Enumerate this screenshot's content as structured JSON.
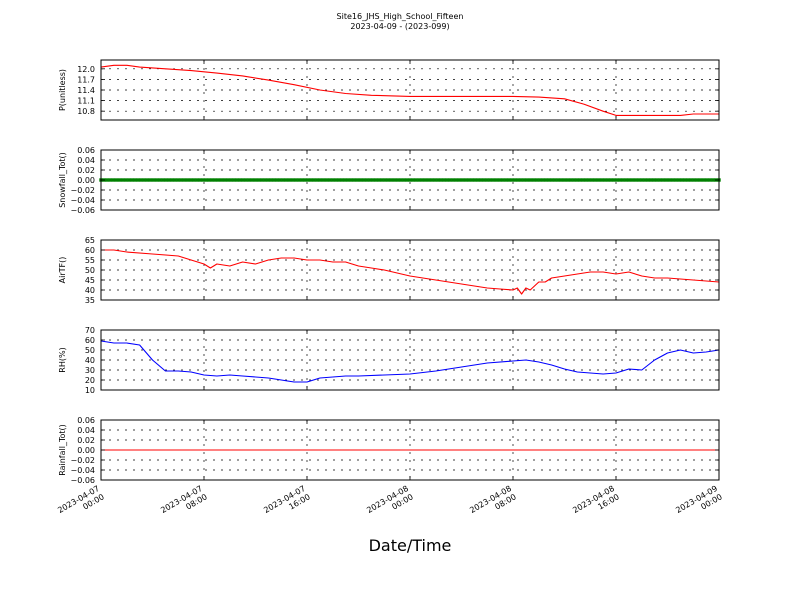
{
  "figure": {
    "title": "Site16_JHS_High_School_Fifteen",
    "subtitle": "2023-04-09 - (2023-099)",
    "xlabel": "Date/Time"
  },
  "chart_data": {
    "type": "line",
    "x_ticks": [
      "2023-04-07 00:00",
      "2023-04-07 08:00",
      "2023-04-07 16:00",
      "2023-04-08 00:00",
      "2023-04-08 08:00",
      "2023-04-08 16:00",
      "2023-04-09 00:00"
    ],
    "x_tick_labels": [
      [
        "2023-04-07",
        "00:00"
      ],
      [
        "2023-04-07",
        "08:00"
      ],
      [
        "2023-04-07",
        "16:00"
      ],
      [
        "2023-04-08",
        "00:00"
      ],
      [
        "2023-04-08",
        "08:00"
      ],
      [
        "2023-04-08",
        "16:00"
      ],
      [
        "2023-04-09",
        "00:00"
      ]
    ],
    "xlim": [
      "2023-04-07 00:00",
      "2023-04-09 00:00"
    ],
    "grid": true,
    "panels": [
      {
        "ylabel": "P(unitless)",
        "ylim": [
          10.55,
          12.25
        ],
        "yticks": [
          10.8,
          11.1,
          11.4,
          11.7,
          12.0
        ],
        "ytick_labels": [
          "10.8",
          "11.1",
          "11.4",
          "11.7",
          "12.0"
        ],
        "series": [
          {
            "color": "#ff0000",
            "style": "line",
            "x": [
              "2023-04-07 00:00",
              "2023-04-07 01:00",
              "2023-04-07 02:00",
              "2023-04-07 03:00",
              "2023-04-07 05:00",
              "2023-04-07 07:00",
              "2023-04-07 09:00",
              "2023-04-07 11:00",
              "2023-04-07 13:00",
              "2023-04-07 15:00",
              "2023-04-07 17:00",
              "2023-04-07 19:00",
              "2023-04-07 21:00",
              "2023-04-08 00:00",
              "2023-04-08 04:00",
              "2023-04-08 08:00",
              "2023-04-08 10:00",
              "2023-04-08 12:00",
              "2023-04-08 13:30",
              "2023-04-08 15:00",
              "2023-04-08 16:00",
              "2023-04-08 19:00",
              "2023-04-08 21:00",
              "2023-04-08 22:00",
              "2023-04-09 00:00"
            ],
            "values": [
              12.05,
              12.1,
              12.1,
              12.05,
              12.0,
              11.95,
              11.88,
              11.8,
              11.68,
              11.55,
              11.4,
              11.3,
              11.25,
              11.22,
              11.22,
              11.22,
              11.2,
              11.15,
              11.0,
              10.8,
              10.68,
              10.68,
              10.68,
              10.72,
              10.72
            ]
          }
        ]
      },
      {
        "ylabel": "Snowfall_Tot()",
        "ylim": [
          -0.06,
          0.06
        ],
        "yticks": [
          -0.06,
          -0.04,
          -0.02,
          0.0,
          0.02,
          0.04,
          0.06
        ],
        "ytick_labels": [
          "−0.06",
          "−0.04",
          "−0.02",
          "0.00",
          "0.02",
          "0.04",
          "0.06"
        ],
        "series": [
          {
            "color": "#008000",
            "style": "markers",
            "x_range": [
              "2023-04-07 00:00",
              "2023-04-09 00:00"
            ],
            "constant_value": 0.0
          }
        ]
      },
      {
        "ylabel": "AirTF()",
        "ylim": [
          35,
          65
        ],
        "yticks": [
          35,
          40,
          45,
          50,
          55,
          60,
          65
        ],
        "ytick_labels": [
          "35",
          "40",
          "45",
          "50",
          "55",
          "60",
          "65"
        ],
        "series": [
          {
            "color": "#ff0000",
            "style": "line",
            "x": [
              "2023-04-07 00:00",
              "2023-04-07 01:00",
              "2023-04-07 02:00",
              "2023-04-07 04:00",
              "2023-04-07 06:00",
              "2023-04-07 07:00",
              "2023-04-07 07:30",
              "2023-04-07 08:00",
              "2023-04-07 08:30",
              "2023-04-07 09:00",
              "2023-04-07 10:00",
              "2023-04-07 11:00",
              "2023-04-07 12:00",
              "2023-04-07 13:00",
              "2023-04-07 14:00",
              "2023-04-07 15:00",
              "2023-04-07 16:00",
              "2023-04-07 17:00",
              "2023-04-07 18:00",
              "2023-04-07 19:00",
              "2023-04-07 20:00",
              "2023-04-07 21:00",
              "2023-04-07 22:00",
              "2023-04-08 00:00",
              "2023-04-08 02:00",
              "2023-04-08 04:00",
              "2023-04-08 06:00",
              "2023-04-08 07:00",
              "2023-04-08 08:00",
              "2023-04-08 08:20",
              "2023-04-08 08:40",
              "2023-04-08 09:00",
              "2023-04-08 09:20",
              "2023-04-08 10:00",
              "2023-04-08 10:30",
              "2023-04-08 11:00",
              "2023-04-08 12:00",
              "2023-04-08 13:00",
              "2023-04-08 14:00",
              "2023-04-08 15:00",
              "2023-04-08 16:00",
              "2023-04-08 17:00",
              "2023-04-08 18:00",
              "2023-04-08 19:00",
              "2023-04-08 20:00",
              "2023-04-08 22:00",
              "2023-04-09 00:00"
            ],
            "values": [
              60,
              60,
              59,
              58,
              57,
              55,
              54,
              53,
              51,
              53,
              52,
              54,
              53,
              55,
              56,
              56,
              55,
              55,
              54,
              54,
              52,
              51,
              50,
              47,
              45,
              43,
              41,
              40.5,
              40,
              41,
              38,
              41,
              40,
              44,
              44,
              46,
              47,
              48,
              49,
              49,
              48,
              49,
              47,
              46,
              46,
              45,
              44
            ]
          }
        ]
      },
      {
        "ylabel": "RH(%)",
        "ylim": [
          10,
          70
        ],
        "yticks": [
          10,
          20,
          30,
          40,
          50,
          60,
          70
        ],
        "ytick_labels": [
          "10",
          "20",
          "30",
          "40",
          "50",
          "60",
          "70"
        ],
        "series": [
          {
            "color": "#0000ff",
            "style": "line",
            "x": [
              "2023-04-07 00:00",
              "2023-04-07 01:00",
              "2023-04-07 02:00",
              "2023-04-07 03:00",
              "2023-04-07 04:00",
              "2023-04-07 05:00",
              "2023-04-07 06:00",
              "2023-04-07 07:00",
              "2023-04-07 08:00",
              "2023-04-07 09:00",
              "2023-04-07 10:00",
              "2023-04-07 11:00",
              "2023-04-07 12:00",
              "2023-04-07 13:00",
              "2023-04-07 14:00",
              "2023-04-07 15:00",
              "2023-04-07 16:00",
              "2023-04-07 17:00",
              "2023-04-07 18:00",
              "2023-04-07 19:00",
              "2023-04-07 20:00",
              "2023-04-07 22:00",
              "2023-04-08 00:00",
              "2023-04-08 02:00",
              "2023-04-08 04:00",
              "2023-04-08 06:00",
              "2023-04-08 08:00",
              "2023-04-08 09:00",
              "2023-04-08 10:00",
              "2023-04-08 11:00",
              "2023-04-08 12:00",
              "2023-04-08 13:00",
              "2023-04-08 14:00",
              "2023-04-08 15:00",
              "2023-04-08 16:00",
              "2023-04-08 17:00",
              "2023-04-08 18:00",
              "2023-04-08 19:00",
              "2023-04-08 20:00",
              "2023-04-08 21:00",
              "2023-04-08 22:00",
              "2023-04-08 23:00",
              "2023-04-09 00:00"
            ],
            "values": [
              59,
              57,
              57,
              55,
              40,
              29,
              29,
              28,
              25,
              24,
              25,
              24,
              23,
              22,
              20,
              18,
              18,
              22,
              23,
              24,
              24,
              25,
              26,
              29,
              33,
              37,
              39,
              40,
              38,
              35,
              31,
              28,
              27,
              26,
              27,
              31,
              30,
              40,
              47,
              50,
              47,
              48,
              50
            ]
          }
        ]
      },
      {
        "ylabel": "Rainfall_Tot()",
        "ylim": [
          -0.06,
          0.06
        ],
        "yticks": [
          -0.06,
          -0.04,
          -0.02,
          0.0,
          0.02,
          0.04,
          0.06
        ],
        "ytick_labels": [
          "−0.06",
          "−0.04",
          "−0.02",
          "0.00",
          "0.02",
          "0.04",
          "0.06"
        ],
        "series": [
          {
            "color": "#ff0000",
            "style": "line",
            "x": [
              "2023-04-07 00:00",
              "2023-04-09 00:00"
            ],
            "values": [
              0.0,
              0.0
            ]
          }
        ]
      }
    ]
  }
}
